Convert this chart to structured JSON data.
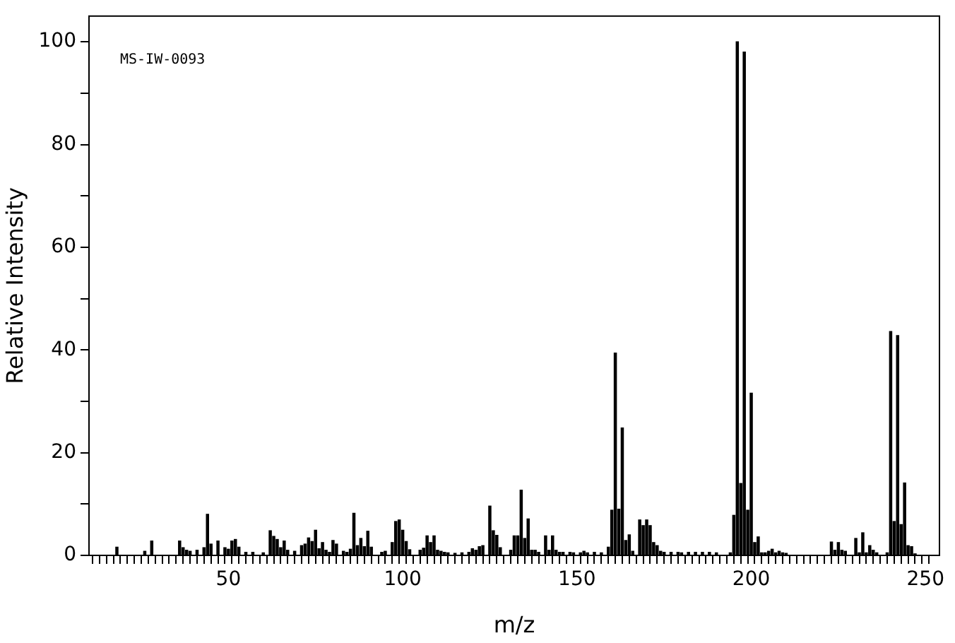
{
  "chart_data": {
    "type": "bar",
    "xlabel": "m/z",
    "ylabel": "Relative Intensity",
    "annotations": [
      "MS-IW-0093"
    ],
    "x": [
      18,
      26,
      28,
      36,
      37,
      38,
      39,
      41,
      43,
      44,
      45,
      47,
      49,
      50,
      51,
      52,
      53,
      55,
      57,
      60,
      62,
      63,
      64,
      65,
      66,
      67,
      69,
      71,
      72,
      73,
      74,
      75,
      76,
      77,
      78,
      79,
      80,
      81,
      83,
      84,
      85,
      86,
      87,
      88,
      89,
      90,
      91,
      94,
      95,
      97,
      98,
      99,
      100,
      101,
      102,
      105,
      106,
      107,
      108,
      109,
      110,
      111,
      112,
      113,
      115,
      117,
      119,
      120,
      121,
      122,
      123,
      125,
      126,
      127,
      128,
      131,
      132,
      133,
      134,
      135,
      136,
      137,
      138,
      139,
      141,
      142,
      143,
      144,
      145,
      146,
      148,
      149,
      151,
      152,
      153,
      155,
      157,
      159,
      160,
      161,
      162,
      163,
      164,
      165,
      166,
      168,
      169,
      170,
      171,
      172,
      173,
      174,
      175,
      177,
      179,
      180,
      182,
      184,
      186,
      188,
      190,
      194,
      195,
      196,
      197,
      198,
      199,
      200,
      201,
      202,
      203,
      204,
      205,
      206,
      207,
      208,
      209,
      210,
      223,
      224,
      225,
      226,
      227,
      230,
      231,
      232,
      233,
      234,
      235,
      236,
      239,
      240,
      241,
      242,
      243,
      244,
      245,
      246,
      247
    ],
    "values": [
      1.6,
      0.8,
      2.8,
      2.8,
      1.5,
      1.0,
      0.8,
      1.0,
      1.5,
      8.0,
      2.2,
      2.8,
      1.5,
      1.2,
      2.8,
      3.1,
      1.6,
      0.6,
      0.6,
      0.5,
      4.8,
      3.7,
      3.1,
      1.5,
      2.8,
      1.0,
      0.8,
      1.9,
      2.2,
      3.4,
      2.7,
      4.9,
      1.3,
      2.5,
      1.0,
      0.6,
      2.9,
      2.2,
      0.8,
      0.6,
      1.2,
      8.2,
      1.9,
      3.3,
      1.7,
      4.7,
      1.6,
      0.6,
      0.8,
      2.5,
      6.6,
      6.9,
      4.9,
      2.7,
      1.1,
      1.0,
      1.4,
      3.8,
      2.5,
      3.8,
      1.0,
      0.8,
      0.6,
      0.5,
      0.4,
      0.5,
      0.6,
      1.3,
      1.0,
      1.7,
      1.9,
      9.6,
      4.8,
      3.9,
      1.5,
      1.0,
      3.8,
      3.8,
      12.7,
      3.3,
      7.1,
      1.0,
      1.0,
      0.6,
      3.8,
      1.0,
      3.8,
      1.0,
      0.6,
      0.6,
      0.6,
      0.5,
      0.5,
      0.8,
      0.5,
      0.6,
      0.5,
      1.6,
      8.8,
      39.4,
      9.0,
      24.8,
      2.9,
      4.0,
      0.8,
      6.9,
      5.8,
      6.9,
      5.8,
      2.5,
      1.9,
      0.8,
      0.6,
      0.6,
      0.6,
      0.5,
      0.6,
      0.6,
      0.6,
      0.6,
      0.5,
      0.5,
      7.8,
      100,
      14,
      98,
      8.8,
      31.6,
      2.5,
      3.6,
      0.5,
      0.5,
      0.8,
      1.2,
      0.5,
      0.8,
      0.5,
      0.4,
      2.6,
      1.0,
      2.5,
      1.0,
      0.8,
      3.3,
      0.5,
      4.4,
      0.5,
      1.9,
      1.0,
      0.5,
      0.5,
      43.6,
      6.6,
      42.8,
      6.0,
      14.1,
      1.9,
      1.7,
      0.3
    ],
    "color": "#000000",
    "xlim": [
      10,
      254
    ],
    "xticks": [
      {
        "value": 10,
        "label": null
      },
      {
        "value": 12,
        "label": null
      },
      {
        "value": 14,
        "label": null
      },
      {
        "value": 16,
        "label": null
      },
      {
        "value": 18,
        "label": null
      },
      {
        "value": 20,
        "label": null
      },
      {
        "value": 22,
        "label": null
      },
      {
        "value": 24,
        "label": null
      },
      {
        "value": 26,
        "label": null
      },
      {
        "value": 28,
        "label": null
      },
      {
        "value": 30,
        "label": null
      },
      {
        "value": 32,
        "label": null
      },
      {
        "value": 34,
        "label": null
      },
      {
        "value": 36,
        "label": null
      },
      {
        "value": 38,
        "label": null
      },
      {
        "value": 40,
        "label": null
      },
      {
        "value": 42,
        "label": null
      },
      {
        "value": 44,
        "label": null
      },
      {
        "value": 46,
        "label": null
      },
      {
        "value": 48,
        "label": null
      },
      50,
      {
        "value": 52,
        "label": null
      },
      {
        "value": 54,
        "label": null
      },
      {
        "value": 56,
        "label": null
      },
      {
        "value": 58,
        "label": null
      },
      {
        "value": 60,
        "label": null
      },
      {
        "value": 62,
        "label": null
      },
      {
        "value": 64,
        "label": null
      },
      {
        "value": 66,
        "label": null
      },
      {
        "value": 68,
        "label": null
      },
      {
        "value": 70,
        "label": null
      },
      {
        "value": 72,
        "label": null
      },
      {
        "value": 74,
        "label": null
      },
      {
        "value": 76,
        "label": null
      },
      {
        "value": 78,
        "label": null
      },
      {
        "value": 80,
        "label": null
      },
      {
        "value": 82,
        "label": null
      },
      {
        "value": 84,
        "label": null
      },
      {
        "value": 86,
        "label": null
      },
      {
        "value": 88,
        "label": null
      },
      {
        "value": 90,
        "label": null
      },
      {
        "value": 92,
        "label": null
      },
      {
        "value": 94,
        "label": null
      },
      {
        "value": 96,
        "label": null
      },
      {
        "value": 98,
        "label": null
      },
      100,
      {
        "value": 102,
        "label": null
      },
      {
        "value": 104,
        "label": null
      },
      {
        "value": 106,
        "label": null
      },
      {
        "value": 108,
        "label": null
      },
      {
        "value": 110,
        "label": null
      },
      {
        "value": 112,
        "label": null
      },
      {
        "value": 114,
        "label": null
      },
      {
        "value": 116,
        "label": null
      },
      {
        "value": 118,
        "label": null
      },
      {
        "value": 120,
        "label": null
      },
      {
        "value": 122,
        "label": null
      },
      {
        "value": 124,
        "label": null
      },
      {
        "value": 126,
        "label": null
      },
      {
        "value": 128,
        "label": null
      },
      {
        "value": 130,
        "label": null
      },
      {
        "value": 132,
        "label": null
      },
      {
        "value": 134,
        "label": null
      },
      {
        "value": 136,
        "label": null
      },
      {
        "value": 138,
        "label": null
      },
      {
        "value": 140,
        "label": null
      },
      {
        "value": 142,
        "label": null
      },
      {
        "value": 144,
        "label": null
      },
      {
        "value": 146,
        "label": null
      },
      {
        "value": 148,
        "label": null
      },
      150,
      {
        "value": 152,
        "label": null
      },
      {
        "value": 154,
        "label": null
      },
      {
        "value": 156,
        "label": null
      },
      {
        "value": 158,
        "label": null
      },
      {
        "value": 160,
        "label": null
      },
      {
        "value": 162,
        "label": null
      },
      {
        "value": 164,
        "label": null
      },
      {
        "value": 166,
        "label": null
      },
      {
        "value": 168,
        "label": null
      },
      {
        "value": 170,
        "label": null
      },
      {
        "value": 172,
        "label": null
      },
      {
        "value": 174,
        "label": null
      },
      {
        "value": 176,
        "label": null
      },
      {
        "value": 178,
        "label": null
      },
      {
        "value": 180,
        "label": null
      },
      {
        "value": 182,
        "label": null
      },
      {
        "value": 184,
        "label": null
      },
      {
        "value": 186,
        "label": null
      },
      {
        "value": 188,
        "label": null
      },
      {
        "value": 190,
        "label": null
      },
      {
        "value": 192,
        "label": null
      },
      {
        "value": 194,
        "label": null
      },
      {
        "value": 196,
        "label": null
      },
      {
        "value": 198,
        "label": null
      },
      200,
      {
        "value": 202,
        "label": null
      },
      {
        "value": 204,
        "label": null
      },
      {
        "value": 206,
        "label": null
      },
      {
        "value": 208,
        "label": null
      },
      {
        "value": 210,
        "label": null
      },
      {
        "value": 212,
        "label": null
      },
      {
        "value": 214,
        "label": null
      },
      {
        "value": 216,
        "label": null
      },
      {
        "value": 218,
        "label": null
      },
      {
        "value": 220,
        "label": null
      },
      {
        "value": 222,
        "label": null
      },
      {
        "value": 224,
        "label": null
      },
      {
        "value": 226,
        "label": null
      },
      {
        "value": 228,
        "label": null
      },
      {
        "value": 230,
        "label": null
      },
      {
        "value": 232,
        "label": null
      },
      {
        "value": 234,
        "label": null
      },
      {
        "value": 236,
        "label": null
      },
      {
        "value": 238,
        "label": null
      },
      {
        "value": 240,
        "label": null
      },
      {
        "value": 242,
        "label": null
      },
      {
        "value": 244,
        "label": null
      },
      {
        "value": 246,
        "label": null
      },
      {
        "value": 248,
        "label": null
      },
      250
    ],
    "ylim": [
      0,
      105
    ],
    "yticks": [
      0,
      {
        "value": 10,
        "label": null
      },
      20,
      {
        "value": 30,
        "label": null
      },
      40,
      {
        "value": 50,
        "label": null
      },
      60,
      {
        "value": 70,
        "label": null
      },
      80,
      {
        "value": 90,
        "label": null
      },
      100
    ]
  }
}
